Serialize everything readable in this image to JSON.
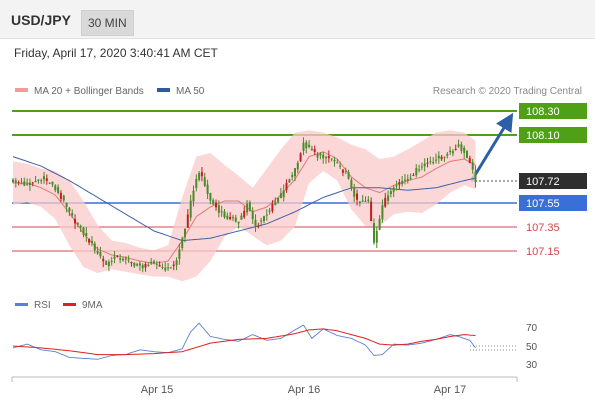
{
  "header": {
    "pair": "USD/JPY",
    "timeframe": "30 MIN"
  },
  "subtitle": "Friday, April 17, 2020 3:40:41 AM CET",
  "legend": {
    "ma20_bb": "MA 20 + Bollinger Bands",
    "ma50": "MA 50",
    "credit": "Research © 2020 Trading Central",
    "rsi": "RSI",
    "ma9": "9MA"
  },
  "colors": {
    "candle": "#4a8a2a",
    "candle_alt": "#c02020",
    "bollinger": "#f9caca",
    "ma20": "#e87878",
    "ma50": "#4060a8",
    "resistance": "#4fa014",
    "pivot": "#3a6fd8",
    "support": "#d04848",
    "projection": "#2c5fa8",
    "rsi": "#5a7fd6",
    "rsi_ma": "#e02020"
  },
  "chart_data": [
    {
      "type": "candlestick",
      "title": "",
      "xlabel": "",
      "ylabel": "",
      "ylim": [
        106.68,
        108.42
      ],
      "x_ticks": [
        "Apr 15",
        "Apr 16",
        "Apr 17"
      ],
      "series": [
        {
          "name": "MA 20 + Bollinger Bands",
          "anchors_x": [
            0,
            5,
            10,
            15,
            20,
            25,
            30,
            35,
            40,
            45,
            50,
            55,
            60,
            65,
            70,
            75,
            80,
            85,
            90,
            95,
            100,
            105,
            110,
            115,
            120,
            125,
            130,
            135,
            140,
            145,
            150,
            155,
            160,
            164
          ],
          "mid": [
            107.7,
            107.7,
            107.66,
            107.6,
            107.45,
            107.28,
            107.15,
            107.1,
            107.08,
            107.05,
            107.03,
            107.05,
            107.22,
            107.42,
            107.5,
            107.55,
            107.55,
            107.46,
            107.5,
            107.6,
            107.73,
            107.92,
            107.96,
            107.9,
            107.75,
            107.66,
            107.62,
            107.68,
            107.72,
            107.75,
            107.82,
            107.88,
            107.9,
            107.85
          ],
          "upper": [
            107.88,
            107.86,
            107.82,
            107.8,
            107.72,
            107.55,
            107.35,
            107.22,
            107.2,
            107.16,
            107.14,
            107.18,
            107.58,
            107.92,
            107.95,
            107.85,
            107.76,
            107.66,
            107.82,
            107.98,
            108.12,
            108.14,
            108.12,
            108.08,
            108.02,
            107.98,
            107.9,
            107.92,
            107.98,
            108.05,
            108.12,
            108.14,
            108.12,
            108.05
          ],
          "lower": [
            107.52,
            107.54,
            107.5,
            107.4,
            107.18,
            107.0,
            106.95,
            106.98,
            106.96,
            106.94,
            106.92,
            106.92,
            106.88,
            106.92,
            107.05,
            107.25,
            107.34,
            107.26,
            107.18,
            107.22,
            107.34,
            107.7,
            107.8,
            107.72,
            107.48,
            107.34,
            107.34,
            107.44,
            107.46,
            107.45,
            107.52,
            107.62,
            107.68,
            107.65
          ]
        },
        {
          "name": "MA 50",
          "anchors_x": [
            0,
            10,
            20,
            30,
            40,
            50,
            60,
            70,
            80,
            90,
            100,
            110,
            120,
            130,
            140,
            150,
            160,
            164
          ],
          "values": [
            107.92,
            107.84,
            107.72,
            107.58,
            107.44,
            107.3,
            107.22,
            107.24,
            107.3,
            107.36,
            107.46,
            107.58,
            107.66,
            107.66,
            107.64,
            107.66,
            107.72,
            107.74
          ]
        },
        {
          "name": "price",
          "anchors_x": [
            0,
            5,
            10,
            13,
            16,
            20,
            25,
            30,
            33,
            36,
            40,
            45,
            50,
            55,
            58,
            62,
            64,
            66,
            70,
            75,
            80,
            83,
            86,
            90,
            95,
            100,
            103,
            108,
            113,
            118,
            122,
            126,
            128,
            131,
            135,
            140,
            145,
            150,
            155,
            158,
            162,
            164
          ],
          "values": [
            107.72,
            107.68,
            107.74,
            107.7,
            107.62,
            107.45,
            107.28,
            107.12,
            107.02,
            107.08,
            107.06,
            107.0,
            107.03,
            106.98,
            107.05,
            107.42,
            107.65,
            107.8,
            107.55,
            107.42,
            107.38,
            107.52,
            107.33,
            107.45,
            107.6,
            107.82,
            108.02,
            107.93,
            107.9,
            107.78,
            107.54,
            107.55,
            107.21,
            107.52,
            107.68,
            107.74,
            107.85,
            107.9,
            107.95,
            108.02,
            107.88,
            107.72
          ]
        }
      ],
      "annotations": [
        {
          "label": "108.30",
          "value": 108.3,
          "kind": "resistance"
        },
        {
          "label": "108.10",
          "value": 108.1,
          "kind": "resistance"
        },
        {
          "label": "107.72",
          "value": 107.72,
          "kind": "last-price"
        },
        {
          "label": "107.55",
          "value": 107.55,
          "kind": "pivot"
        },
        {
          "label": "107.35",
          "value": 107.35,
          "kind": "support"
        },
        {
          "label": "107.15",
          "value": 107.15,
          "kind": "support"
        }
      ],
      "projection": {
        "from": 107.72,
        "to": 108.3
      }
    },
    {
      "type": "line",
      "title": "",
      "ylim": [
        20,
        80
      ],
      "y_ticks": [
        "70",
        "50",
        "30"
      ],
      "series": [
        {
          "name": "RSI",
          "anchors_x": [
            0,
            5,
            10,
            15,
            20,
            25,
            30,
            35,
            40,
            45,
            50,
            55,
            60,
            63,
            66,
            70,
            75,
            80,
            85,
            90,
            95,
            100,
            103,
            106,
            110,
            115,
            120,
            125,
            128,
            131,
            135,
            140,
            145,
            150,
            155,
            158,
            162,
            164
          ],
          "values": [
            48,
            52,
            46,
            44,
            38,
            37,
            36,
            40,
            41,
            46,
            44,
            43,
            47,
            65,
            74,
            60,
            57,
            55,
            62,
            56,
            58,
            67,
            72,
            58,
            68,
            61,
            58,
            51,
            40,
            41,
            52,
            51,
            53,
            57,
            62,
            60,
            56,
            48
          ]
        },
        {
          "name": "9MA",
          "anchors_x": [
            0,
            10,
            20,
            30,
            40,
            50,
            60,
            70,
            80,
            90,
            100,
            105,
            110,
            115,
            120,
            125,
            130,
            135,
            140,
            145,
            150,
            155,
            160,
            164
          ],
          "values": [
            50,
            48,
            45,
            41,
            41,
            42,
            44,
            53,
            57,
            58,
            63,
            67,
            68,
            66,
            62,
            58,
            52,
            51,
            52,
            55,
            57,
            60,
            62,
            61
          ]
        }
      ]
    }
  ]
}
